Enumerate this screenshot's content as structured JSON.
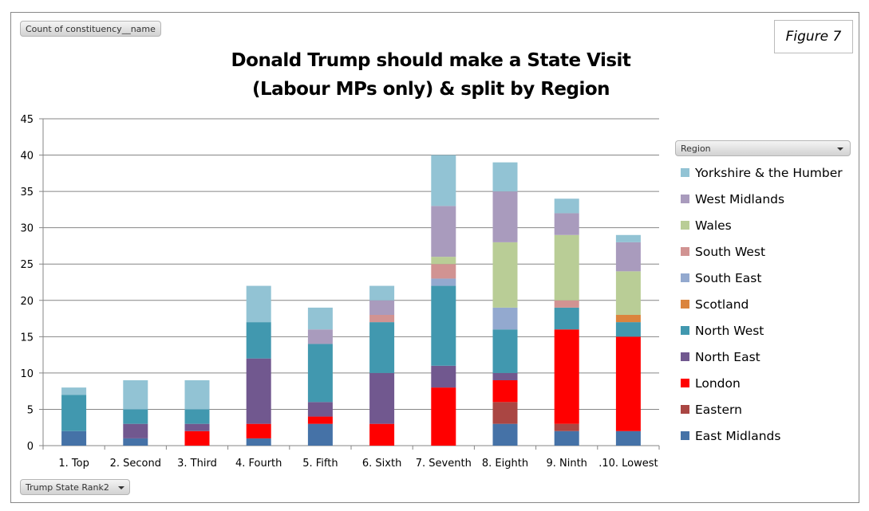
{
  "value_field_button": "Count of constituency__name",
  "axis_field_button": "Trump State Rank2",
  "legend_field_button": "Region",
  "figure_label": "Figure 7",
  "chart_data": {
    "type": "bar",
    "stacked": true,
    "title": "Donald Trump should make a State Visit (Labour MPs only) & split by Region",
    "title_lines": [
      "Donald Trump should make a State Visit",
      "(Labour MPs only) & split by Region"
    ],
    "xlabel": "",
    "ylabel": "",
    "ylim": [
      0,
      45
    ],
    "yticks": [
      0,
      5,
      10,
      15,
      20,
      25,
      30,
      35,
      40,
      45
    ],
    "grid": true,
    "legend_position": "right",
    "categories": [
      "1. Top",
      "2. Second",
      "3. Third",
      "4. Fourth",
      "5. Fifth",
      "6. Sixth",
      "7. Seventh",
      "8. Eighth",
      "9. Ninth",
      ".10. Lowest"
    ],
    "series": [
      {
        "name": "East Midlands",
        "color": "#4572a7",
        "values": [
          2,
          1,
          0,
          1,
          3,
          0,
          0,
          3,
          2,
          2
        ]
      },
      {
        "name": "Eastern",
        "color": "#aa4643",
        "values": [
          0,
          0,
          0,
          0,
          0,
          0,
          0,
          3,
          1,
          0
        ]
      },
      {
        "name": "London",
        "color": "#ff0000",
        "values": [
          0,
          0,
          2,
          2,
          1,
          3,
          8,
          3,
          13,
          13
        ]
      },
      {
        "name": "North East",
        "color": "#71588f",
        "values": [
          0,
          2,
          1,
          9,
          2,
          7,
          3,
          1,
          0,
          0
        ]
      },
      {
        "name": "North West",
        "color": "#4198af",
        "values": [
          5,
          2,
          2,
          5,
          8,
          7,
          11,
          6,
          3,
          2
        ]
      },
      {
        "name": "Scotland",
        "color": "#db843d",
        "values": [
          0,
          0,
          0,
          0,
          0,
          0,
          0,
          0,
          0,
          1
        ]
      },
      {
        "name": "South East",
        "color": "#93a9cf",
        "values": [
          0,
          0,
          0,
          0,
          0,
          0,
          1,
          3,
          0,
          0
        ]
      },
      {
        "name": "South West",
        "color": "#d19392",
        "values": [
          0,
          0,
          0,
          0,
          0,
          1,
          2,
          0,
          1,
          0
        ]
      },
      {
        "name": "Wales",
        "color": "#b9cd96",
        "values": [
          0,
          0,
          0,
          0,
          0,
          0,
          1,
          9,
          9,
          6
        ]
      },
      {
        "name": "West Midlands",
        "color": "#a99bbd",
        "values": [
          0,
          0,
          0,
          0,
          2,
          2,
          7,
          7,
          3,
          4
        ]
      },
      {
        "name": "Yorkshire & the Humber",
        "color": "#92c3d4",
        "values": [
          1,
          4,
          4,
          5,
          3,
          2,
          7,
          4,
          2,
          1
        ]
      }
    ],
    "totals": [
      8,
      9,
      9,
      22,
      19,
      22,
      40,
      39,
      34,
      29
    ]
  }
}
